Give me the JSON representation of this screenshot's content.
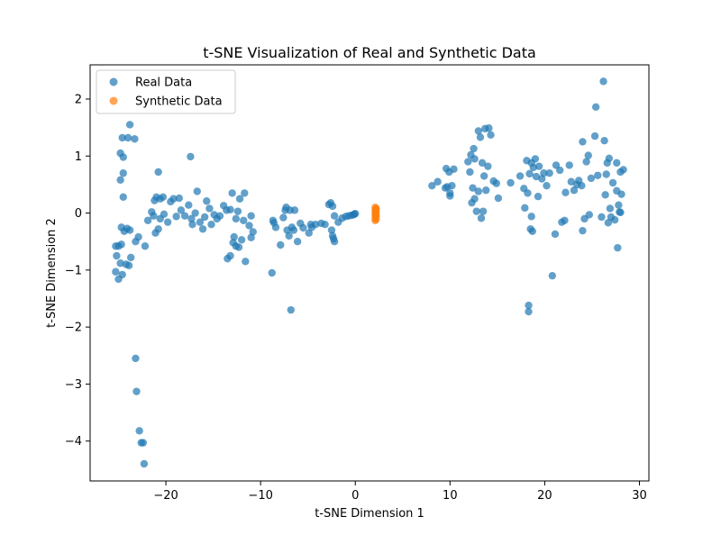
{
  "chart_data": {
    "type": "scatter",
    "title": "t-SNE Visualization of Real and Synthetic Data",
    "xlabel": "t-SNE Dimension 1",
    "ylabel": "t-SNE Dimension 2",
    "xlim": [
      -28,
      31
    ],
    "ylim": [
      -4.7,
      2.6
    ],
    "x_ticks": [
      -20,
      -10,
      0,
      10,
      20,
      30
    ],
    "y_ticks": [
      -4,
      -3,
      -2,
      -1,
      0,
      1,
      2
    ],
    "x_tick_labels": [
      "−20",
      "−10",
      "0",
      "10",
      "20",
      "30"
    ],
    "y_tick_labels": [
      "−4",
      "−3",
      "−2",
      "−1",
      "0",
      "1",
      "2"
    ],
    "grid": false,
    "legend_position": "top-left",
    "series": [
      {
        "name": "Real Data",
        "color": "#1f77b4",
        "points": [
          [
            -23.8,
            1.55
          ],
          [
            -24.6,
            1.32
          ],
          [
            -24.0,
            1.32
          ],
          [
            -23.3,
            1.3
          ],
          [
            -24.8,
            1.05
          ],
          [
            -24.5,
            0.98
          ],
          [
            -24.5,
            0.7
          ],
          [
            -24.8,
            0.58
          ],
          [
            -24.5,
            0.28
          ],
          [
            -24.7,
            -0.25
          ],
          [
            -24.1,
            -0.27
          ],
          [
            -23.8,
            -0.3
          ],
          [
            -24.4,
            -0.32
          ],
          [
            -23.2,
            -0.5
          ],
          [
            -22.9,
            -0.42
          ],
          [
            -24.7,
            -0.55
          ],
          [
            -25.3,
            -0.58
          ],
          [
            -25.0,
            -0.58
          ],
          [
            -25.2,
            -0.75
          ],
          [
            -23.7,
            -0.78
          ],
          [
            -24.8,
            -0.88
          ],
          [
            -24.2,
            -0.9
          ],
          [
            -23.9,
            -0.92
          ],
          [
            -25.3,
            -1.03
          ],
          [
            -24.6,
            -1.08
          ],
          [
            -25.0,
            -1.16
          ],
          [
            -23.2,
            -2.55
          ],
          [
            -23.1,
            -3.13
          ],
          [
            -22.8,
            -3.82
          ],
          [
            -22.6,
            -4.03
          ],
          [
            -22.4,
            -4.03
          ],
          [
            -22.3,
            -4.4
          ],
          [
            -22.2,
            -0.58
          ],
          [
            -21.9,
            -0.13
          ],
          [
            -21.5,
            0.02
          ],
          [
            -21.3,
            -0.05
          ],
          [
            -21.2,
            0.22
          ],
          [
            -21.0,
            0.28
          ],
          [
            -20.8,
            0.72
          ],
          [
            -20.6,
            -0.1
          ],
          [
            -20.6,
            0.25
          ],
          [
            -20.3,
            0.28
          ],
          [
            -21.1,
            -0.35
          ],
          [
            -20.8,
            -0.28
          ],
          [
            -20.2,
            -0.02
          ],
          [
            -19.8,
            -0.16
          ],
          [
            -19.5,
            0.2
          ],
          [
            -19.2,
            0.25
          ],
          [
            -18.9,
            -0.06
          ],
          [
            -18.6,
            0.26
          ],
          [
            -18.4,
            0.05
          ],
          [
            -18.0,
            -0.05
          ],
          [
            -17.6,
            0.14
          ],
          [
            -17.4,
            0.99
          ],
          [
            -17.3,
            -0.1
          ],
          [
            -17.2,
            -0.2
          ],
          [
            -16.9,
            0.0
          ],
          [
            -16.7,
            0.38
          ],
          [
            -16.4,
            -0.16
          ],
          [
            -16.1,
            -0.28
          ],
          [
            -15.9,
            -0.07
          ],
          [
            -15.7,
            0.21
          ],
          [
            -15.4,
            0.08
          ],
          [
            -15.2,
            -0.2
          ],
          [
            -14.9,
            -0.03
          ],
          [
            -14.6,
            -0.1
          ],
          [
            -14.3,
            -0.05
          ],
          [
            -13.9,
            0.13
          ],
          [
            -13.6,
            0.05
          ],
          [
            -13.5,
            -0.8
          ],
          [
            -13.2,
            -0.75
          ],
          [
            -13.2,
            0.06
          ],
          [
            -13.0,
            0.35
          ],
          [
            -12.8,
            -0.42
          ],
          [
            -12.9,
            -0.52
          ],
          [
            -12.6,
            -0.58
          ],
          [
            -12.6,
            -0.1
          ],
          [
            -12.4,
            0.03
          ],
          [
            -12.3,
            -0.6
          ],
          [
            -12.2,
            0.25
          ],
          [
            -12.0,
            -0.47
          ],
          [
            -11.8,
            -0.13
          ],
          [
            -11.7,
            0.35
          ],
          [
            -11.6,
            -0.85
          ],
          [
            -11.2,
            -0.22
          ],
          [
            -11.0,
            -0.43
          ],
          [
            -10.8,
            -0.33
          ],
          [
            -11.0,
            -0.05
          ],
          [
            -8.8,
            -1.05
          ],
          [
            -8.7,
            -0.13
          ],
          [
            -8.6,
            -0.17
          ],
          [
            -8.4,
            -0.25
          ],
          [
            -7.9,
            -0.56
          ],
          [
            -7.6,
            -0.08
          ],
          [
            -7.4,
            0.05
          ],
          [
            -7.3,
            0.1
          ],
          [
            -7.2,
            -0.3
          ],
          [
            -7.0,
            -0.4
          ],
          [
            -6.9,
            0.05
          ],
          [
            -6.8,
            -1.7
          ],
          [
            -6.7,
            -0.25
          ],
          [
            -6.5,
            -0.3
          ],
          [
            -6.4,
            0.05
          ],
          [
            -6.1,
            -0.5
          ],
          [
            -5.8,
            -0.18
          ],
          [
            -5.5,
            -0.26
          ],
          [
            -4.9,
            -0.35
          ],
          [
            -4.7,
            -0.2
          ],
          [
            -4.6,
            -0.25
          ],
          [
            -4.2,
            -0.2
          ],
          [
            -3.6,
            -0.18
          ],
          [
            -3.2,
            -0.2
          ],
          [
            -2.8,
            0.15
          ],
          [
            -2.6,
            0.18
          ],
          [
            -2.5,
            -0.3
          ],
          [
            -2.4,
            -0.4
          ],
          [
            -2.3,
            -0.45
          ],
          [
            -2.2,
            -0.5
          ],
          [
            -2.4,
            0.12
          ],
          [
            -2.2,
            -0.05
          ],
          [
            -1.8,
            -0.16
          ],
          [
            -1.4,
            -0.09
          ],
          [
            -1.0,
            -0.06
          ],
          [
            -0.7,
            -0.05
          ],
          [
            -0.4,
            -0.04
          ],
          [
            -0.2,
            -0.03
          ],
          [
            0.0,
            -0.01
          ],
          [
            -0.1,
            -0.02
          ],
          [
            8.1,
            0.48
          ],
          [
            8.7,
            0.55
          ],
          [
            9.5,
            0.44
          ],
          [
            9.6,
            0.78
          ],
          [
            9.7,
            0.46
          ],
          [
            9.9,
            0.72
          ],
          [
            10.0,
            0.35
          ],
          [
            10.0,
            0.3
          ],
          [
            10.2,
            0.48
          ],
          [
            10.4,
            0.77
          ],
          [
            11.9,
            0.9
          ],
          [
            12.2,
            1.02
          ],
          [
            12.1,
            0.72
          ],
          [
            12.3,
            0.18
          ],
          [
            12.4,
            0.44
          ],
          [
            12.5,
            1.13
          ],
          [
            12.6,
            0.25
          ],
          [
            12.6,
            0.95
          ],
          [
            12.8,
            0.03
          ],
          [
            13.0,
            1.44
          ],
          [
            13.0,
            0.38
          ],
          [
            13.2,
            1.33
          ],
          [
            13.4,
            0.88
          ],
          [
            13.3,
            -0.09
          ],
          [
            13.5,
            0.03
          ],
          [
            13.6,
            0.65
          ],
          [
            13.7,
            1.48
          ],
          [
            13.8,
            0.4
          ],
          [
            14.0,
            0.82
          ],
          [
            14.1,
            1.49
          ],
          [
            14.3,
            1.37
          ],
          [
            14.6,
            0.56
          ],
          [
            14.9,
            0.52
          ],
          [
            15.1,
            0.26
          ],
          [
            16.4,
            0.53
          ],
          [
            17.4,
            0.65
          ],
          [
            17.8,
            0.43
          ],
          [
            17.9,
            0.09
          ],
          [
            18.1,
            0.92
          ],
          [
            18.2,
            0.35
          ],
          [
            18.3,
            -1.62
          ],
          [
            18.3,
            -1.73
          ],
          [
            18.5,
            -0.28
          ],
          [
            18.6,
            -0.06
          ],
          [
            18.7,
            -0.32
          ],
          [
            18.4,
            0.69
          ],
          [
            18.6,
            0.88
          ],
          [
            18.8,
            0.8
          ],
          [
            19.0,
            0.95
          ],
          [
            19.1,
            0.64
          ],
          [
            19.3,
            0.29
          ],
          [
            19.4,
            0.82
          ],
          [
            19.7,
            0.6
          ],
          [
            19.9,
            0.7
          ],
          [
            20.2,
            0.48
          ],
          [
            20.5,
            0.7
          ],
          [
            20.8,
            -1.1
          ],
          [
            21.1,
            -0.37
          ],
          [
            21.2,
            0.84
          ],
          [
            21.6,
            0.75
          ],
          [
            21.8,
            -0.16
          ],
          [
            22.1,
            -0.13
          ],
          [
            22.2,
            0.36
          ],
          [
            22.6,
            0.84
          ],
          [
            22.8,
            0.55
          ],
          [
            23.1,
            0.4
          ],
          [
            23.4,
            0.5
          ],
          [
            23.6,
            0.57
          ],
          [
            23.9,
            0.48
          ],
          [
            24.0,
            1.25
          ],
          [
            24.0,
            -0.31
          ],
          [
            24.2,
            -0.1
          ],
          [
            24.4,
            0.9
          ],
          [
            24.6,
            1.01
          ],
          [
            24.7,
            -0.03
          ],
          [
            24.9,
            0.61
          ],
          [
            25.3,
            1.35
          ],
          [
            25.4,
            1.86
          ],
          [
            25.6,
            0.66
          ],
          [
            26.0,
            -0.07
          ],
          [
            26.2,
            2.31
          ],
          [
            26.3,
            1.27
          ],
          [
            26.4,
            0.32
          ],
          [
            26.5,
            0.68
          ],
          [
            26.7,
            -0.17
          ],
          [
            26.8,
            0.96
          ],
          [
            27.0,
            -0.07
          ],
          [
            27.2,
            0.53
          ],
          [
            27.4,
            -0.12
          ],
          [
            27.6,
            0.39
          ],
          [
            27.8,
            0.14
          ],
          [
            27.9,
            0.02
          ],
          [
            28.0,
            0.72
          ],
          [
            28.1,
            0.33
          ],
          [
            28.3,
            0.76
          ],
          [
            26.9,
            0.08
          ],
          [
            27.6,
            0.88
          ],
          [
            27.7,
            -0.61
          ],
          [
            28.0,
            0.01
          ],
          [
            26.6,
            0.88
          ]
        ]
      },
      {
        "name": "Synthetic Data",
        "color": "#ff7f0e",
        "points": [
          [
            2.1,
            0.1
          ],
          [
            2.2,
            0.07
          ],
          [
            2.1,
            0.04
          ],
          [
            2.2,
            0.01
          ],
          [
            2.1,
            -0.02
          ],
          [
            2.2,
            -0.05
          ],
          [
            2.1,
            -0.08
          ],
          [
            2.2,
            -0.11
          ],
          [
            2.1,
            -0.13
          ],
          [
            2.2,
            0.08
          ],
          [
            2.15,
            -0.04
          ],
          [
            2.15,
            0.02
          ]
        ]
      }
    ]
  }
}
